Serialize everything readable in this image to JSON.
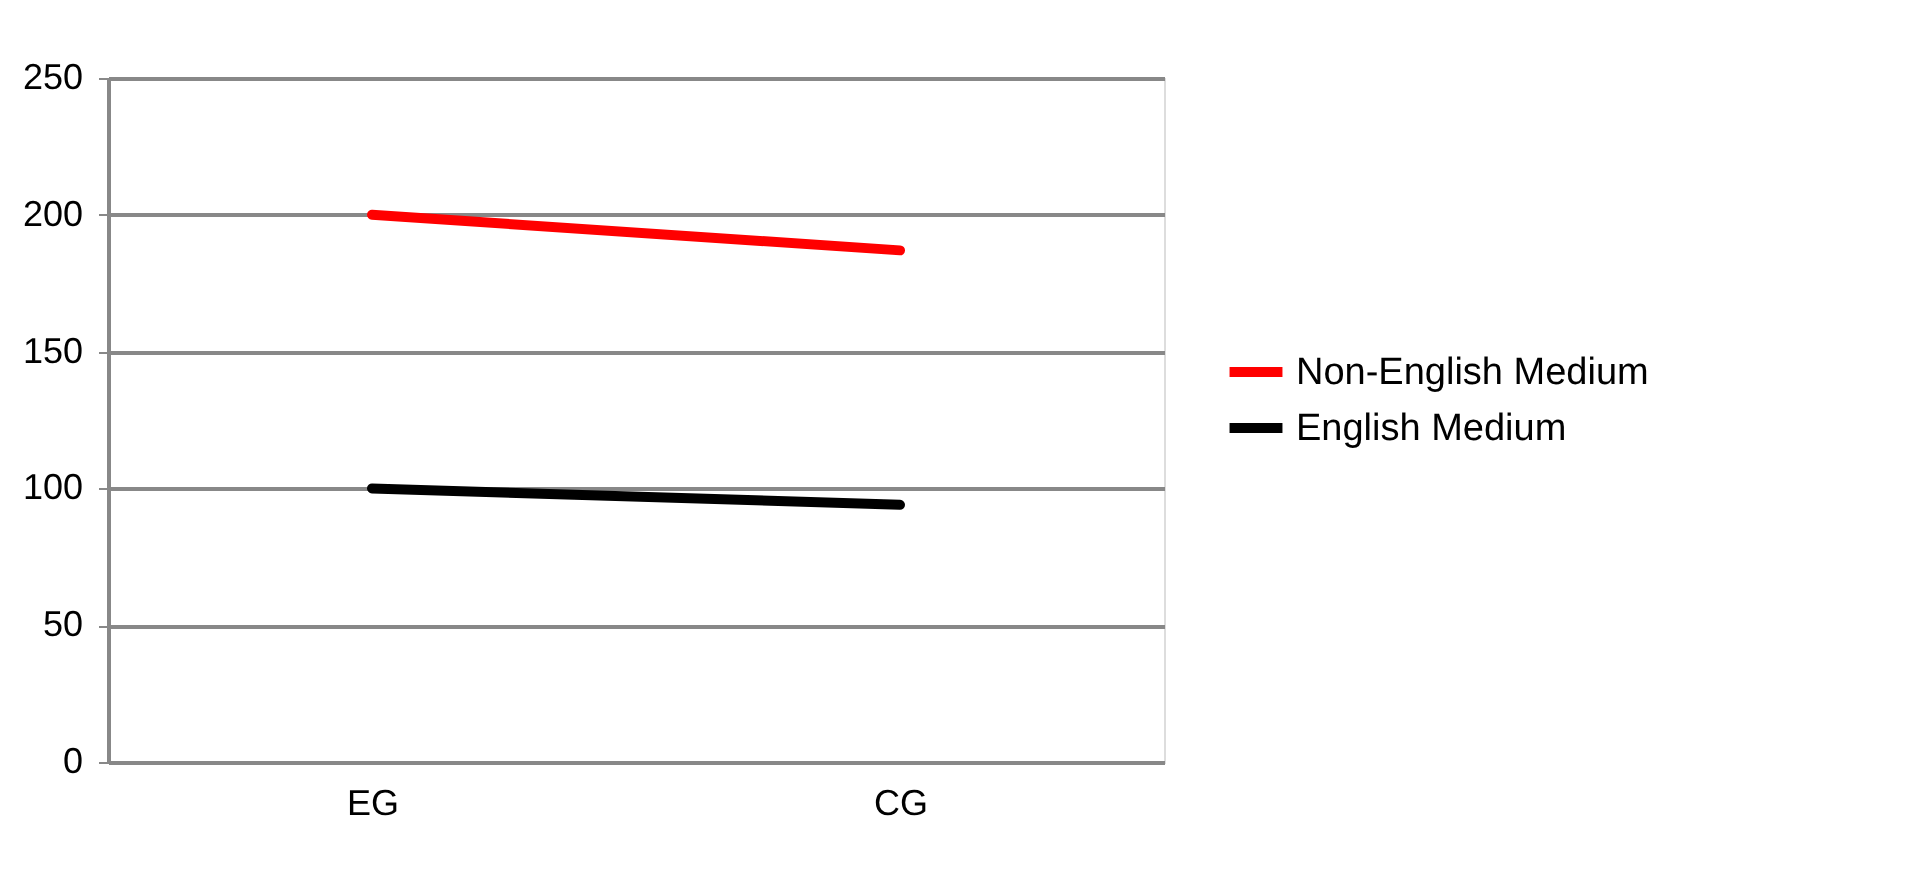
{
  "chart_data": {
    "type": "line",
    "categories": [
      "EG",
      "CG"
    ],
    "series": [
      {
        "name": "Non-English Medium",
        "color": "#ff0000",
        "values": [
          200,
          187
        ]
      },
      {
        "name": "English Medium",
        "color": "#000000",
        "values": [
          100,
          94
        ]
      }
    ],
    "ylim": [
      0,
      250
    ],
    "yticks": [
      0,
      50,
      100,
      150,
      200,
      250
    ],
    "grid": "y",
    "legend": "right",
    "marker": "none",
    "line_style": "solid"
  }
}
